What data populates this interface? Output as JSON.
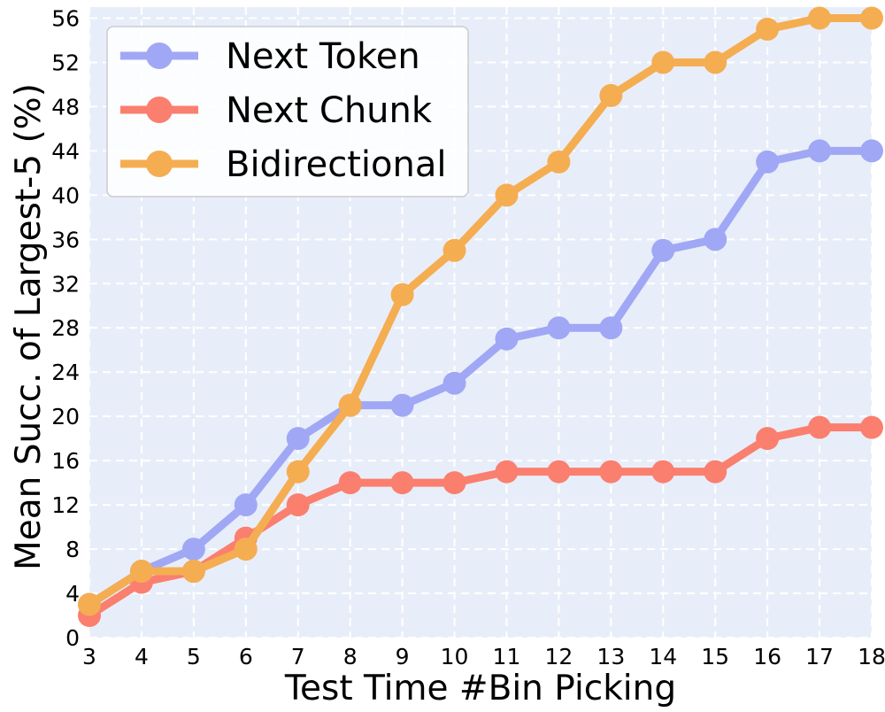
{
  "chart_data": {
    "type": "line",
    "title": "",
    "xlabel": "Test Time #Bin Picking",
    "ylabel": "Mean Succ. of Largest-5 (%)",
    "x": [
      3,
      4,
      5,
      6,
      7,
      8,
      9,
      10,
      11,
      12,
      13,
      14,
      15,
      16,
      17,
      18
    ],
    "xlim": [
      3,
      18
    ],
    "ylim": [
      0,
      57
    ],
    "yticks": [
      0,
      4,
      8,
      12,
      16,
      20,
      24,
      28,
      32,
      36,
      40,
      44,
      48,
      52,
      56
    ],
    "grid": true,
    "legend_position": "top-left",
    "background_color": "#e8eef9",
    "series": [
      {
        "name": "Next Token",
        "color": "#a0a8f5",
        "values": [
          3,
          6,
          8,
          12,
          18,
          21,
          21,
          23,
          27,
          28,
          28,
          35,
          36,
          43,
          44,
          44
        ]
      },
      {
        "name": "Next Chunk",
        "color": "#fa7f6f",
        "values": [
          2,
          5,
          6,
          9,
          12,
          14,
          14,
          14,
          15,
          15,
          15,
          15,
          15,
          18,
          19,
          19
        ]
      },
      {
        "name": "Bidirectional",
        "color": "#f5ad52",
        "values": [
          3,
          6,
          6,
          8,
          15,
          21,
          31,
          35,
          40,
          43,
          49,
          52,
          52,
          55,
          56,
          56
        ]
      }
    ]
  }
}
